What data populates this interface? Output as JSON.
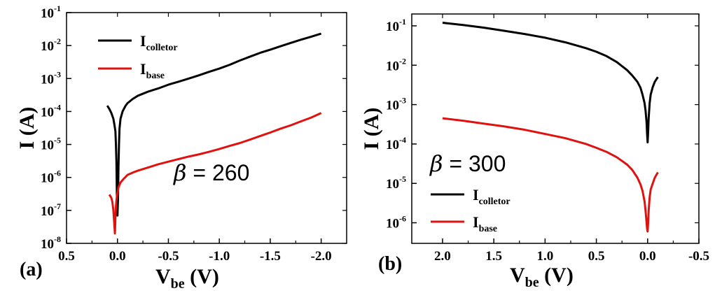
{
  "chart_data": [
    {
      "panel_label": "(a)",
      "type": "line",
      "xlabel": {
        "main": "V",
        "sub": "be",
        "unit": " (V)"
      },
      "ylabel": "I (A)",
      "x_reversed": true,
      "xlim": [
        0.5,
        -2.25
      ],
      "x_ticks": [
        "0.5",
        "0.0",
        "-0.5",
        "-1.0",
        "-1.5",
        "-2.0"
      ],
      "y_scale": "log",
      "ylim": [
        1e-08,
        0.1
      ],
      "y_ticks": [
        {
          "base": "10",
          "exp": "-1"
        },
        {
          "base": "10",
          "exp": "-2"
        },
        {
          "base": "10",
          "exp": "-3"
        },
        {
          "base": "10",
          "exp": "-4"
        },
        {
          "base": "10",
          "exp": "-5"
        },
        {
          "base": "10",
          "exp": "-6"
        },
        {
          "base": "10",
          "exp": "-7"
        },
        {
          "base": "10",
          "exp": "-8"
        }
      ],
      "legend_position": "top-left",
      "annotation": {
        "symbol": "β",
        "text": " = 260"
      },
      "series": [
        {
          "name": {
            "main": "I",
            "sub": "colletor"
          },
          "color": "#000000",
          "x": [
            0.1,
            0.08,
            0.06,
            0.04,
            0.03,
            0.02,
            0.015,
            0.01,
            0.005,
            0.0,
            -0.005,
            -0.01,
            -0.015,
            -0.02,
            -0.03,
            -0.05,
            -0.08,
            -0.1,
            -0.15,
            -0.2,
            -0.3,
            -0.4,
            -0.5,
            -0.6,
            -0.7,
            -0.8,
            -0.9,
            -1.0,
            -1.1,
            -1.2,
            -1.3,
            -1.4,
            -1.5,
            -1.6,
            -1.7,
            -1.8,
            -1.9,
            -2.0
          ],
          "y": [
            0.00015,
            0.00012,
            9e-05,
            6e-05,
            4e-05,
            2.5e-05,
            1e-05,
            3e-06,
            2e-07,
            7e-08,
            2e-07,
            2e-06,
            1e-05,
            3e-05,
            6e-05,
            0.0001,
            0.00015,
            0.00018,
            0.00024,
            0.0003,
            0.0004,
            0.0005,
            0.00065,
            0.0008,
            0.001,
            0.00125,
            0.0016,
            0.002,
            0.0026,
            0.0035,
            0.0046,
            0.006,
            0.0075,
            0.0095,
            0.012,
            0.015,
            0.0185,
            0.023
          ]
        },
        {
          "name": {
            "main": "I",
            "sub": "base"
          },
          "color": "#e0120f",
          "x": [
            0.08,
            0.06,
            0.05,
            0.04,
            0.035,
            0.03,
            0.025,
            0.02,
            0.015,
            0.01,
            0.005,
            0.0,
            -0.01,
            -0.03,
            -0.06,
            -0.1,
            -0.15,
            -0.2,
            -0.3,
            -0.4,
            -0.5,
            -0.6,
            -0.7,
            -0.8,
            -0.9,
            -1.0,
            -1.1,
            -1.2,
            -1.3,
            -1.4,
            -1.5,
            -1.6,
            -1.7,
            -1.8,
            -1.9,
            -2.0
          ],
          "y": [
            3e-07,
            2.4e-07,
            1.8e-07,
            1e-07,
            6e-08,
            3.5e-08,
            2e-08,
            6e-08,
            1.3e-07,
            2e-07,
            2.7e-07,
            3.3e-07,
            5e-07,
            7e-07,
            9e-07,
            1.2e-06,
            1.4e-06,
            1.6e-06,
            2e-06,
            2.5e-06,
            3e-06,
            3.6e-06,
            4.3e-06,
            5e-06,
            6e-06,
            7.3e-06,
            9e-06,
            1.1e-05,
            1.4e-05,
            1.8e-05,
            2.3e-05,
            3e-05,
            3.8e-05,
            5e-05,
            6.5e-05,
            9e-05
          ]
        }
      ]
    },
    {
      "panel_label": "(b)",
      "type": "line",
      "xlabel": {
        "main": "V",
        "sub": "be",
        "unit": " (V)"
      },
      "ylabel": "I (A)",
      "x_reversed": true,
      "xlim": [
        2.3,
        -0.5
      ],
      "x_ticks": [
        "2.0",
        "1.5",
        "1.0",
        "0.5",
        "0.0",
        "-0.5"
      ],
      "y_scale": "log",
      "ylim": [
        3e-07,
        0.2
      ],
      "y_ticks": [
        {
          "base": "10",
          "exp": "-1"
        },
        {
          "base": "10",
          "exp": "-2"
        },
        {
          "base": "10",
          "exp": "-3"
        },
        {
          "base": "10",
          "exp": "-4"
        },
        {
          "base": "10",
          "exp": "-5"
        },
        {
          "base": "10",
          "exp": "-6"
        }
      ],
      "legend_position": "bottom-left",
      "annotation": {
        "symbol": "β",
        "text": " = 300"
      },
      "series": [
        {
          "name": {
            "main": "I",
            "sub": "colletor"
          },
          "color": "#000000",
          "x": [
            2.0,
            1.8,
            1.6,
            1.4,
            1.2,
            1.0,
            0.8,
            0.6,
            0.5,
            0.4,
            0.3,
            0.2,
            0.15,
            0.1,
            0.07,
            0.05,
            0.03,
            0.02,
            0.01,
            0.005,
            0.0,
            -0.005,
            -0.01,
            -0.02,
            -0.03,
            -0.05,
            -0.07,
            -0.1
          ],
          "y": [
            0.12,
            0.105,
            0.09,
            0.075,
            0.062,
            0.05,
            0.038,
            0.027,
            0.022,
            0.017,
            0.012,
            0.0075,
            0.0055,
            0.0038,
            0.0027,
            0.0018,
            0.0011,
            0.0007,
            0.00035,
            0.00018,
            0.00011,
            0.0002,
            0.00045,
            0.0011,
            0.0018,
            0.0028,
            0.0038,
            0.005
          ]
        },
        {
          "name": {
            "main": "I",
            "sub": "base"
          },
          "color": "#e0120f",
          "x": [
            2.0,
            1.8,
            1.6,
            1.4,
            1.2,
            1.0,
            0.8,
            0.6,
            0.5,
            0.4,
            0.3,
            0.2,
            0.15,
            0.1,
            0.07,
            0.05,
            0.03,
            0.02,
            0.01,
            0.005,
            0.0,
            -0.005,
            -0.01,
            -0.02,
            -0.03,
            -0.05,
            -0.07,
            -0.1
          ],
          "y": [
            0.00045,
            0.00039,
            0.00033,
            0.00028,
            0.00023,
            0.00018,
            0.00014,
            0.0001,
            8e-05,
            6.3e-05,
            4.6e-05,
            3e-05,
            2.2e-05,
            1.4e-05,
            9.5e-06,
            6.5e-06,
            3.5e-06,
            2e-06,
            1e-06,
            7e-07,
            6e-07,
            1e-06,
            2e-06,
            4.5e-06,
            7e-06,
            1e-05,
            1.4e-05,
            1.9e-05
          ]
        }
      ]
    }
  ]
}
